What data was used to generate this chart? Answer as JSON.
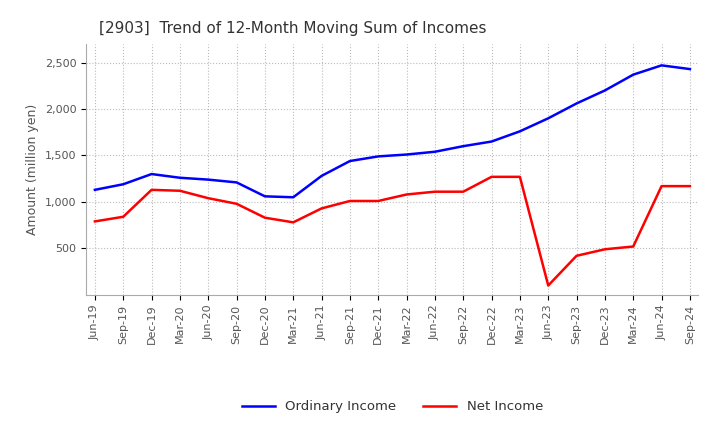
{
  "title": "[2903]  Trend of 12-Month Moving Sum of Incomes",
  "ylabel": "Amount (million yen)",
  "ylim": [
    0,
    2700
  ],
  "yticks": [
    500,
    1000,
    1500,
    2000,
    2500
  ],
  "x_labels": [
    "Jun-19",
    "Sep-19",
    "Dec-19",
    "Mar-20",
    "Jun-20",
    "Sep-20",
    "Dec-20",
    "Mar-21",
    "Jun-21",
    "Sep-21",
    "Dec-21",
    "Mar-22",
    "Jun-22",
    "Sep-22",
    "Dec-22",
    "Mar-23",
    "Jun-23",
    "Sep-23",
    "Dec-23",
    "Mar-24",
    "Jun-24",
    "Sep-24"
  ],
  "ordinary_income": [
    1130,
    1190,
    1300,
    1260,
    1240,
    1210,
    1060,
    1050,
    1280,
    1440,
    1490,
    1510,
    1540,
    1600,
    1650,
    1760,
    1900,
    2060,
    2200,
    2370,
    2470,
    2430
  ],
  "net_income": [
    790,
    840,
    1130,
    1120,
    1040,
    980,
    830,
    780,
    930,
    1010,
    1010,
    1080,
    1110,
    1110,
    1270,
    1270,
    100,
    420,
    490,
    520,
    1170,
    1170
  ],
  "ordinary_color": "#0000ff",
  "net_color": "#ff0000",
  "grid_color": "#aaaaaa",
  "background_color": "#ffffff",
  "title_fontsize": 11,
  "title_color": "#333333",
  "legend_labels": [
    "Ordinary Income",
    "Net Income"
  ],
  "tick_fontsize": 8,
  "ylabel_fontsize": 9
}
